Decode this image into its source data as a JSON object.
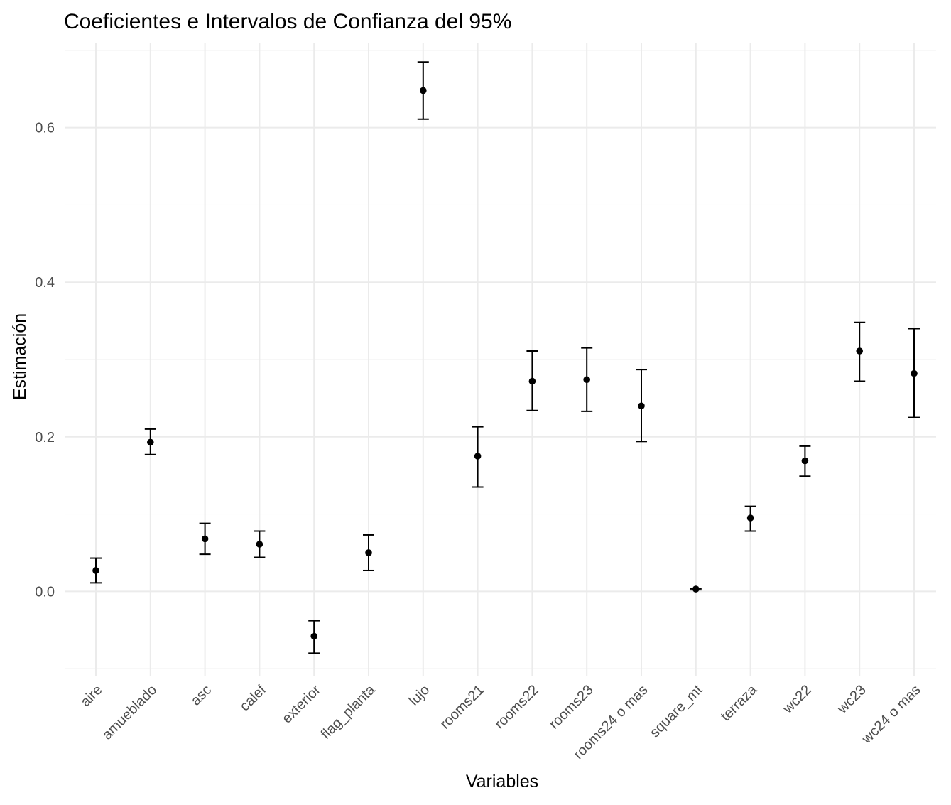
{
  "chart_data": {
    "type": "errorbar",
    "title": "Coeficientes e Intervalos de Confianza del 95%",
    "xlabel": "Variables",
    "ylabel": "Estimación",
    "ylim": [
      -0.11,
      0.71
    ],
    "yticks": [
      0.0,
      0.2,
      0.4,
      0.6
    ],
    "ytick_labels": [
      "0.0",
      "0.2",
      "0.4",
      "0.6"
    ],
    "grid": true,
    "categories": [
      "aire",
      "amueblado",
      "asc",
      "calef",
      "exterior",
      "flag_planta",
      "lujo",
      "rooms21",
      "rooms22",
      "rooms23",
      "rooms24 o mas",
      "square_mt",
      "terraza",
      "wc22",
      "wc23",
      "wc24 o mas"
    ],
    "estimates": [
      0.027,
      0.193,
      0.068,
      0.061,
      -0.058,
      0.05,
      0.648,
      0.175,
      0.272,
      0.274,
      0.24,
      0.003,
      0.095,
      0.169,
      0.311,
      0.282
    ],
    "lower": [
      0.011,
      0.177,
      0.048,
      0.044,
      -0.08,
      0.027,
      0.611,
      0.135,
      0.234,
      0.233,
      0.194,
      0.002,
      0.078,
      0.149,
      0.272,
      0.225
    ],
    "upper": [
      0.043,
      0.21,
      0.088,
      0.078,
      -0.038,
      0.073,
      0.685,
      0.213,
      0.311,
      0.315,
      0.287,
      0.004,
      0.11,
      0.188,
      0.348,
      0.34
    ]
  }
}
